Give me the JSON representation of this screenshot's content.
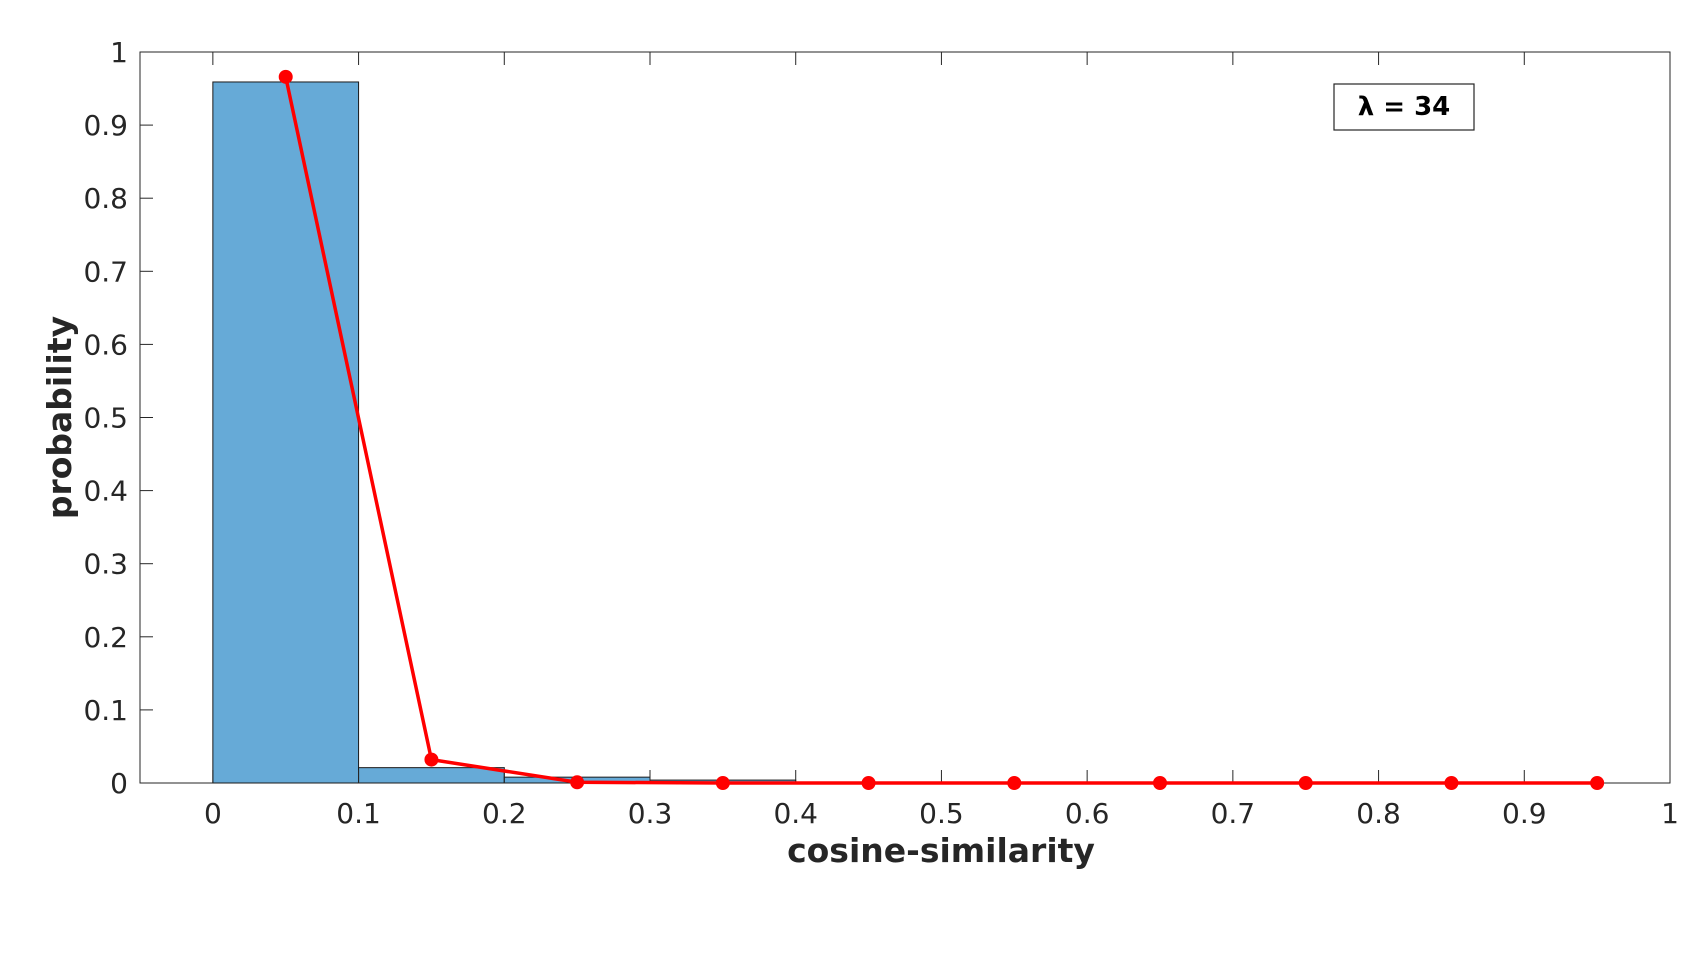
{
  "chart_data": {
    "type": "bar",
    "xlabel": "cosine-similarity",
    "ylabel": "probability",
    "xlim": [
      -0.05,
      1.0
    ],
    "ylim": [
      0,
      1
    ],
    "xticks": [
      "0",
      "0.1",
      "0.2",
      "0.3",
      "0.4",
      "0.5",
      "0.6",
      "0.7",
      "0.8",
      "0.9",
      "1"
    ],
    "yticks": [
      "0",
      "0.1",
      "0.2",
      "0.3",
      "0.4",
      "0.5",
      "0.6",
      "0.7",
      "0.8",
      "0.9",
      "1"
    ],
    "histogram": {
      "bin_edges": [
        0,
        0.1,
        0.2,
        0.3,
        0.4,
        0.5,
        0.6,
        0.7,
        0.8,
        0.9,
        1.0
      ],
      "values": [
        0.959,
        0.021,
        0.008,
        0.004,
        0.0,
        0.0,
        0.0,
        0.0,
        0.0,
        0.0
      ],
      "color": "#66aad7"
    },
    "line_series": {
      "x": [
        0.05,
        0.15,
        0.25,
        0.35,
        0.45,
        0.55,
        0.65,
        0.75,
        0.85,
        0.95
      ],
      "y": [
        0.966,
        0.032,
        0.001,
        0.0,
        0.0,
        0.0,
        0.0,
        0.0,
        0.0,
        0.0
      ],
      "color": "#ff0000"
    },
    "legend": {
      "text": "λ = 34",
      "placement": "top-right"
    },
    "grid": false
  }
}
